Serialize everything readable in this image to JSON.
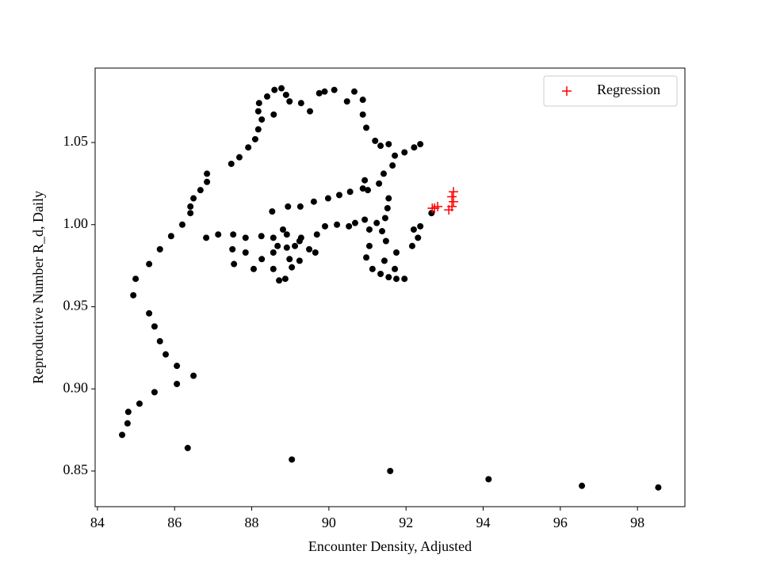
{
  "chart_data": {
    "type": "scatter",
    "xlabel": "Encounter Density, Adjusted",
    "ylabel": "Reproductive Number R_d, Daily",
    "xlim": [
      83.94,
      99.23
    ],
    "ylim": [
      0.8283,
      1.0953
    ],
    "xticks": [
      84,
      86,
      88,
      90,
      92,
      94,
      96,
      98
    ],
    "yticks": [
      0.85,
      {
        "value": 0.9,
        "label": "0.90"
      },
      0.95,
      {
        "value": 1.0,
        "label": "1.00"
      },
      1.05
    ],
    "legend": "upper right",
    "series": [
      {
        "color": "#000000",
        "marker": "circle",
        "x": [
          84.64,
          84.78,
          84.8,
          85.09,
          85.48,
          86.06,
          86.34,
          89.04,
          91.59,
          94.14,
          96.56,
          98.54,
          84.93,
          84.99,
          85.34,
          85.62,
          85.91,
          86.2,
          86.41,
          86.41,
          86.49,
          86.67,
          86.84,
          86.84,
          85.34,
          85.48,
          85.62,
          85.77,
          86.06,
          86.49,
          87.47,
          87.68,
          87.91,
          88.09,
          88.17,
          88.26,
          88.17,
          88.19,
          88.4,
          88.59,
          88.77,
          88.89,
          88.98,
          88.57,
          89.28,
          89.51,
          89.75,
          89.89,
          90.14,
          90.47,
          90.66,
          90.88,
          90.88,
          90.97,
          91.2,
          91.34,
          91.55,
          91.71,
          91.96,
          92.21,
          92.37,
          91.65,
          91.42,
          91.3,
          91.01,
          90.93,
          90.88,
          88.53,
          88.94,
          89.26,
          89.61,
          89.98,
          90.27,
          90.55,
          86.82,
          87.13,
          87.52,
          87.84,
          88.25,
          88.56,
          88.91,
          89.28,
          89.69,
          89.9,
          90.21,
          90.52,
          90.68,
          90.93,
          91.05,
          91.24,
          91.46,
          91.52,
          91.55,
          91.38,
          91.48,
          91.05,
          90.97,
          91.13,
          91.34,
          91.55,
          91.75,
          91.96,
          91.71,
          92.16,
          92.31,
          92.2,
          92.37,
          92.66,
          91.75,
          91.44,
          87.5,
          87.54,
          87.84,
          88.05,
          88.26,
          88.56,
          88.56,
          88.71,
          88.87,
          89.04,
          89.24,
          88.98,
          89.12,
          89.49,
          89.65,
          89.24,
          88.81,
          88.67,
          88.91
        ],
        "values": [
          0.872,
          0.879,
          0.886,
          0.891,
          0.898,
          0.903,
          0.864,
          0.857,
          0.85,
          0.845,
          0.841,
          0.84,
          0.957,
          0.967,
          0.976,
          0.985,
          0.993,
          1.0,
          1.007,
          1.011,
          1.016,
          1.021,
          1.026,
          1.031,
          0.946,
          0.938,
          0.929,
          0.921,
          0.914,
          0.908,
          1.037,
          1.041,
          1.047,
          1.052,
          1.058,
          1.064,
          1.069,
          1.074,
          1.078,
          1.082,
          1.083,
          1.079,
          1.075,
          1.067,
          1.074,
          1.069,
          1.08,
          1.081,
          1.082,
          1.075,
          1.081,
          1.076,
          1.067,
          1.059,
          1.051,
          1.048,
          1.049,
          1.042,
          1.044,
          1.047,
          1.049,
          1.036,
          1.031,
          1.025,
          1.021,
          1.027,
          1.022,
          1.008,
          1.011,
          1.011,
          1.014,
          1.016,
          1.018,
          1.02,
          0.992,
          0.994,
          0.994,
          0.992,
          0.993,
          0.992,
          0.994,
          0.992,
          0.994,
          0.999,
          1.0,
          0.999,
          1.001,
          1.003,
          0.997,
          1.001,
          1.004,
          1.01,
          1.016,
          0.996,
          0.99,
          0.987,
          0.98,
          0.973,
          0.97,
          0.968,
          0.967,
          0.967,
          0.973,
          0.987,
          0.992,
          0.997,
          0.999,
          1.007,
          0.983,
          0.978,
          0.985,
          0.976,
          0.983,
          0.973,
          0.979,
          0.983,
          0.973,
          0.966,
          0.967,
          0.974,
          0.978,
          0.979,
          0.987,
          0.985,
          0.983,
          0.99,
          0.997,
          0.987,
          0.986
        ]
      },
      {
        "name": "Regression",
        "color": "#ff0000",
        "marker": "plus",
        "x": [
          92.74,
          92.82,
          92.68,
          93.19,
          93.19,
          93.11,
          93.23,
          93.23
        ],
        "values": [
          1.01,
          1.011,
          1.01,
          1.017,
          1.011,
          1.009,
          1.014,
          1.02
        ]
      }
    ]
  }
}
